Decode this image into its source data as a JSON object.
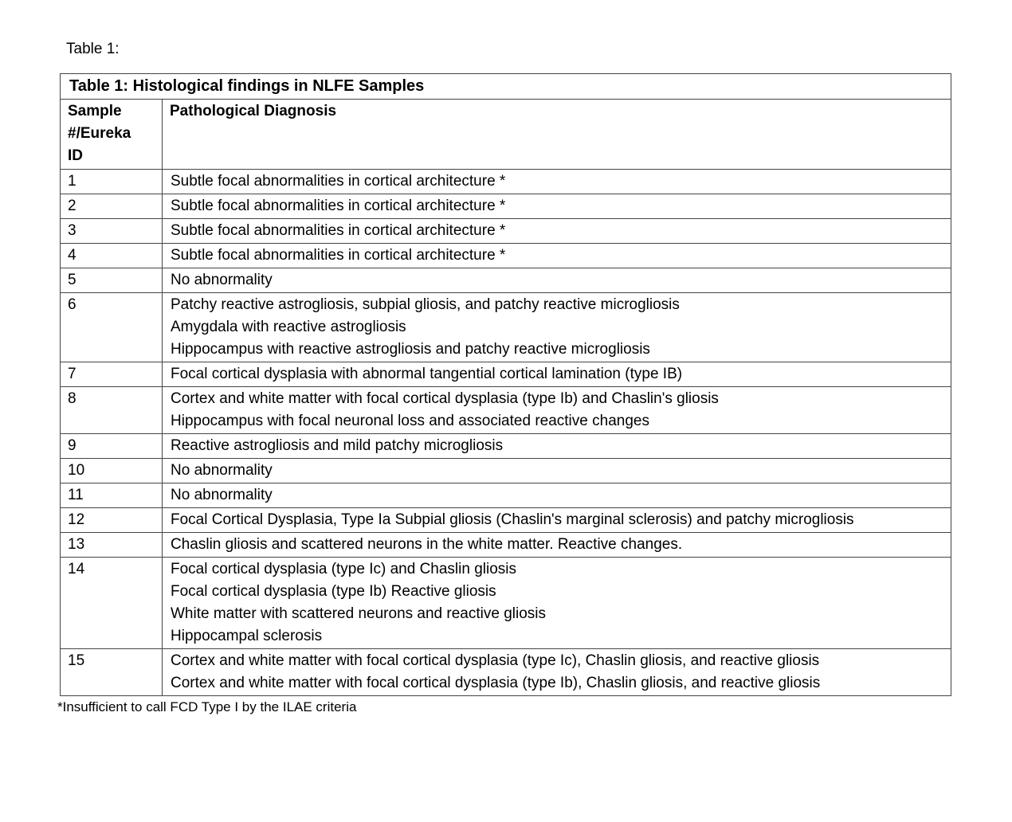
{
  "page": {
    "caption": "Table 1:",
    "footnote": "*Insufficient to call FCD Type I by the ILAE criteria"
  },
  "table": {
    "title": "Table 1: Histological findings in NLFE Samples",
    "columns": [
      {
        "label": "Sample #/Eureka ID"
      },
      {
        "label": "Pathological Diagnosis"
      }
    ],
    "rows": [
      {
        "id": "1",
        "diagnosis": [
          "Subtle focal abnormalities in cortical architecture *"
        ]
      },
      {
        "id": "2",
        "diagnosis": [
          "Subtle focal abnormalities in cortical architecture *"
        ]
      },
      {
        "id": "3",
        "diagnosis": [
          "Subtle focal abnormalities in cortical architecture *"
        ]
      },
      {
        "id": "4",
        "diagnosis": [
          "Subtle focal abnormalities in cortical architecture *"
        ]
      },
      {
        "id": "5",
        "diagnosis": [
          "No abnormality"
        ]
      },
      {
        "id": "6",
        "diagnosis": [
          "Patchy reactive astrogliosis, subpial gliosis, and patchy reactive microgliosis",
          "Amygdala with reactive astrogliosis",
          "Hippocampus with reactive astrogliosis and patchy reactive microgliosis"
        ]
      },
      {
        "id": "7",
        "diagnosis": [
          "Focal cortical dysplasia with abnormal tangential cortical lamination (type IB)"
        ]
      },
      {
        "id": "8",
        "diagnosis": [
          "Cortex and white matter with focal cortical dysplasia (type Ib) and Chaslin's gliosis",
          "Hippocampus with focal neuronal loss and associated reactive changes"
        ]
      },
      {
        "id": "9",
        "diagnosis": [
          "Reactive astrogliosis and mild patchy microgliosis"
        ]
      },
      {
        "id": "10",
        "diagnosis": [
          "No abnormality"
        ]
      },
      {
        "id": "11",
        "diagnosis": [
          "No abnormality"
        ]
      },
      {
        "id": "12",
        "diagnosis": [
          "Focal Cortical Dysplasia, Type Ia Subpial gliosis (Chaslin's marginal sclerosis) and patchy microgliosis"
        ]
      },
      {
        "id": "13",
        "diagnosis": [
          "Chaslin gliosis and scattered neurons in the white matter. Reactive changes."
        ]
      },
      {
        "id": "14",
        "diagnosis": [
          "Focal cortical dysplasia (type Ic) and Chaslin gliosis",
          "Focal cortical dysplasia (type Ib) Reactive gliosis",
          "White matter with scattered neurons and reactive gliosis",
          "Hippocampal sclerosis"
        ]
      },
      {
        "id": "15",
        "diagnosis": [
          "Cortex and white matter with focal cortical dysplasia (type Ic), Chaslin gliosis, and reactive gliosis",
          "Cortex and white matter with focal cortical dysplasia (type Ib), Chaslin gliosis, and reactive gliosis"
        ]
      }
    ]
  },
  "colors": {
    "text": "#000000",
    "border": "#444444",
    "page_background": "#ffffff"
  }
}
